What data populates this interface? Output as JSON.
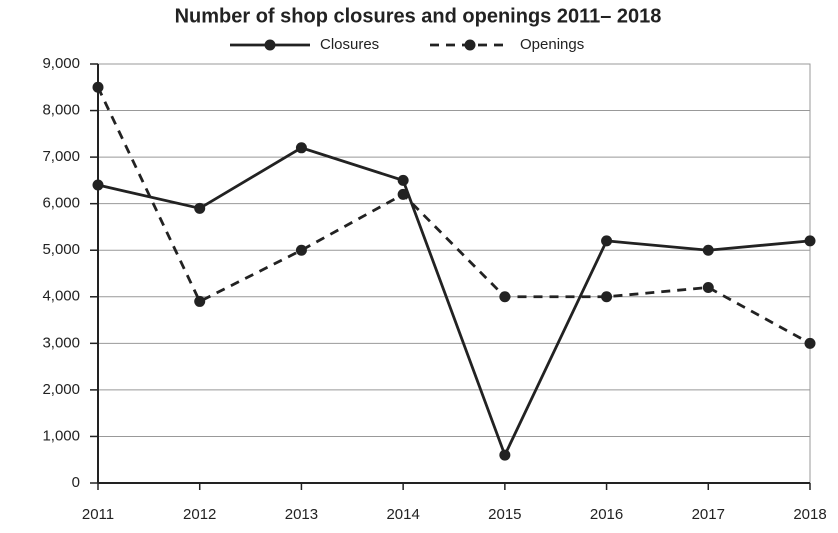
{
  "chart_data": {
    "type": "line",
    "title": "Number of shop closures and openings 2011– 2018",
    "categories": [
      "2011",
      "2012",
      "2013",
      "2014",
      "2015",
      "2016",
      "2017",
      "2018"
    ],
    "series": [
      {
        "name": "Closures",
        "color": "#222222",
        "line_style": "solid",
        "values": [
          6400,
          5900,
          7200,
          6500,
          600,
          5200,
          5000,
          5200
        ]
      },
      {
        "name": "Openings",
        "color": "#222222",
        "line_style": "dashed",
        "values": [
          8500,
          3900,
          5000,
          6200,
          4000,
          4000,
          4200,
          3000
        ]
      }
    ],
    "ylim": [
      0,
      9000
    ],
    "yticks": [
      0,
      {
        "value": 1000,
        "label": "1,000"
      },
      {
        "value": 2000,
        "label": "2,000"
      },
      {
        "value": 3000,
        "label": "3,000"
      },
      {
        "value": 4000,
        "label": "4,000"
      },
      {
        "value": 5000,
        "label": "5,000"
      },
      {
        "value": 6000,
        "label": "6,000"
      },
      {
        "value": 7000,
        "label": "7,000"
      },
      {
        "value": 8000,
        "label": "8,000"
      },
      {
        "value": 9000,
        "label": "9,000"
      }
    ],
    "grid": true,
    "legend": "top"
  }
}
